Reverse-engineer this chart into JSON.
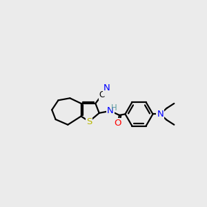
{
  "background_color": "#ebebeb",
  "atom_colors": {
    "S": "#b8b800",
    "N": "#0000ff",
    "O": "#ff0000",
    "C": "#000000",
    "H": "#5f9ea0"
  },
  "bond_lw": 1.6,
  "font_size_atom": 9.5
}
